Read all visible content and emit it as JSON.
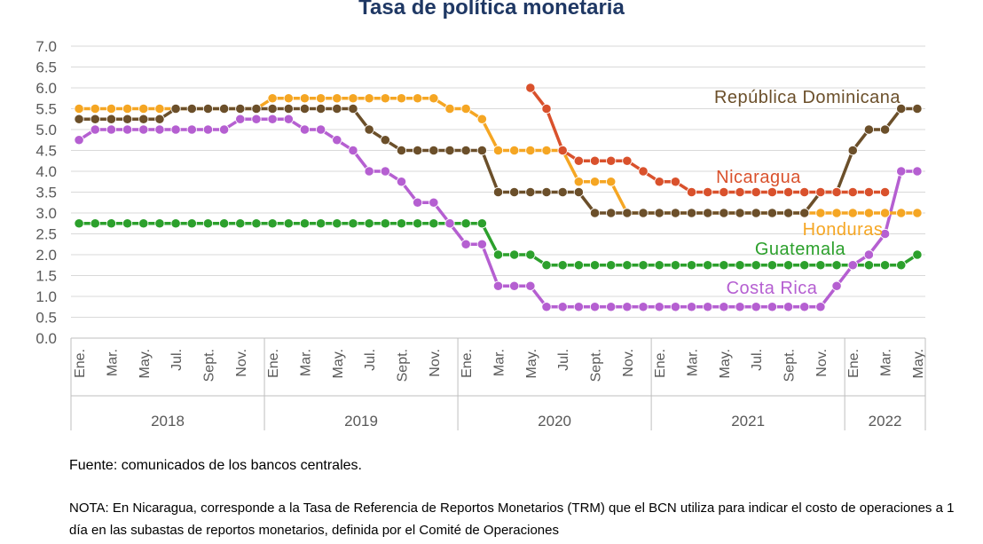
{
  "chart_data": {
    "type": "line",
    "title": "Tasa de política monetaria",
    "ylim": [
      0,
      7
    ],
    "yticks": [
      "0.0",
      "0.5",
      "1.0",
      "1.5",
      "2.0",
      "2.5",
      "3.0",
      "3.5",
      "4.0",
      "4.5",
      "5.0",
      "5.5",
      "6.0",
      "6.5",
      "7.0"
    ],
    "grid": true,
    "x_tick_labels": [
      "Ene.",
      "Mar.",
      "May.",
      "Jul.",
      "Sept.",
      "Nov.",
      "Ene.",
      "Mar.",
      "May.",
      "Jul.",
      "Sept.",
      "Nov.",
      "Ene.",
      "Mar.",
      "May.",
      "Jul.",
      "Sept.",
      "Nov.",
      "Ene.",
      "Mar.",
      "May.",
      "Jul.",
      "Sept.",
      "Nov.",
      "Ene.",
      "Mar.",
      "May."
    ],
    "years": [
      "2018",
      "2019",
      "2020",
      "2021",
      "2022"
    ],
    "x": [
      "2018-01",
      "2018-02",
      "2018-03",
      "2018-04",
      "2018-05",
      "2018-06",
      "2018-07",
      "2018-08",
      "2018-09",
      "2018-10",
      "2018-11",
      "2018-12",
      "2019-01",
      "2019-02",
      "2019-03",
      "2019-04",
      "2019-05",
      "2019-06",
      "2019-07",
      "2019-08",
      "2019-09",
      "2019-10",
      "2019-11",
      "2019-12",
      "2020-01",
      "2020-02",
      "2020-03",
      "2020-04",
      "2020-05",
      "2020-06",
      "2020-07",
      "2020-08",
      "2020-09",
      "2020-10",
      "2020-11",
      "2020-12",
      "2021-01",
      "2021-02",
      "2021-03",
      "2021-04",
      "2021-05",
      "2021-06",
      "2021-07",
      "2021-08",
      "2021-09",
      "2021-10",
      "2021-11",
      "2021-12",
      "2022-01",
      "2022-02",
      "2022-03",
      "2022-04",
      "2022-05"
    ],
    "series": [
      {
        "name": "Guatemala",
        "color": "#2ca02c",
        "values": [
          2.75,
          2.75,
          2.75,
          2.75,
          2.75,
          2.75,
          2.75,
          2.75,
          2.75,
          2.75,
          2.75,
          2.75,
          2.75,
          2.75,
          2.75,
          2.75,
          2.75,
          2.75,
          2.75,
          2.75,
          2.75,
          2.75,
          2.75,
          2.75,
          2.75,
          2.75,
          2.0,
          2.0,
          2.0,
          1.75,
          1.75,
          1.75,
          1.75,
          1.75,
          1.75,
          1.75,
          1.75,
          1.75,
          1.75,
          1.75,
          1.75,
          1.75,
          1.75,
          1.75,
          1.75,
          1.75,
          1.75,
          1.75,
          1.75,
          1.75,
          1.75,
          1.75,
          2.0
        ]
      },
      {
        "name": "Costa Rica",
        "color": "#b55fd1",
        "values": [
          4.75,
          5.0,
          5.0,
          5.0,
          5.0,
          5.0,
          5.0,
          5.0,
          5.0,
          5.0,
          5.25,
          5.25,
          5.25,
          5.25,
          5.0,
          5.0,
          4.75,
          4.5,
          4.0,
          4.0,
          3.75,
          3.25,
          3.25,
          2.75,
          2.25,
          2.25,
          1.25,
          1.25,
          1.25,
          0.75,
          0.75,
          0.75,
          0.75,
          0.75,
          0.75,
          0.75,
          0.75,
          0.75,
          0.75,
          0.75,
          0.75,
          0.75,
          0.75,
          0.75,
          0.75,
          0.75,
          0.75,
          1.25,
          1.75,
          2.0,
          2.5,
          4.0,
          4.0
        ]
      },
      {
        "name": "Honduras",
        "color": "#f5a623",
        "values": [
          5.5,
          5.5,
          5.5,
          5.5,
          5.5,
          5.5,
          5.5,
          5.5,
          5.5,
          5.5,
          5.5,
          5.5,
          5.75,
          5.75,
          5.75,
          5.75,
          5.75,
          5.75,
          5.75,
          5.75,
          5.75,
          5.75,
          5.75,
          5.5,
          5.5,
          5.25,
          4.5,
          4.5,
          4.5,
          4.5,
          4.5,
          3.75,
          3.75,
          3.75,
          3.0,
          3.0,
          3.0,
          3.0,
          3.0,
          3.0,
          3.0,
          3.0,
          3.0,
          3.0,
          3.0,
          3.0,
          3.0,
          3.0,
          3.0,
          3.0,
          3.0,
          3.0,
          3.0
        ]
      },
      {
        "name": "República Dominicana",
        "color": "#6b4f2a",
        "values": [
          5.25,
          5.25,
          5.25,
          5.25,
          5.25,
          5.25,
          5.5,
          5.5,
          5.5,
          5.5,
          5.5,
          5.5,
          5.5,
          5.5,
          5.5,
          5.5,
          5.5,
          5.5,
          5.0,
          4.75,
          4.5,
          4.5,
          4.5,
          4.5,
          4.5,
          4.5,
          3.5,
          3.5,
          3.5,
          3.5,
          3.5,
          3.5,
          3.0,
          3.0,
          3.0,
          3.0,
          3.0,
          3.0,
          3.0,
          3.0,
          3.0,
          3.0,
          3.0,
          3.0,
          3.0,
          3.0,
          3.5,
          3.5,
          4.5,
          5.0,
          5.0,
          5.5,
          5.5
        ]
      },
      {
        "name": "Nicaragua",
        "color": "#d9512c",
        "values": [
          null,
          null,
          null,
          null,
          null,
          null,
          null,
          null,
          null,
          null,
          null,
          null,
          null,
          null,
          null,
          null,
          null,
          null,
          null,
          null,
          null,
          null,
          null,
          null,
          null,
          null,
          null,
          null,
          6.0,
          5.5,
          4.5,
          4.25,
          4.25,
          4.25,
          4.25,
          4.0,
          3.75,
          3.75,
          3.5,
          3.5,
          3.5,
          3.5,
          3.5,
          3.5,
          3.5,
          3.5,
          3.5,
          3.5,
          3.5,
          3.5,
          3.5,
          null,
          null
        ]
      }
    ]
  },
  "source": "Fuente: comunicados de los bancos centrales.",
  "note": "NOTA: En Nicaragua, corresponde a la Tasa de Referencia de Reportos Monetarios (TRM) que el BCN utiliza para indicar el costo de operaciones a 1 día en las subastas de reportos monetarios, definida por el Comité de Operaciones"
}
